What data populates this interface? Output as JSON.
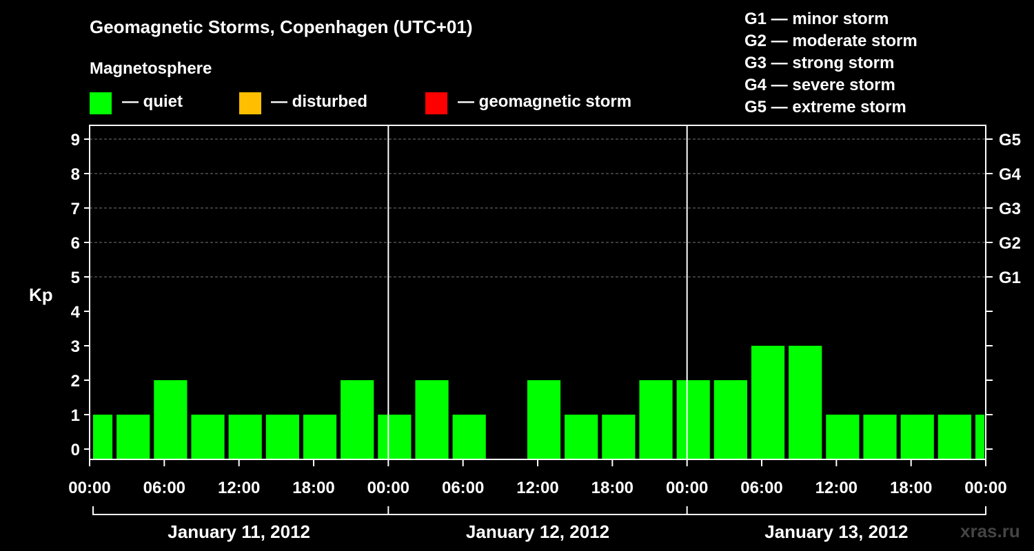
{
  "chart_data": {
    "type": "bar",
    "title": "Geomagnetic Storms, Copenhagen (UTC+01)",
    "ylabel": "Kp",
    "ylim": [
      0,
      9
    ],
    "y_ticks": [
      "0",
      "1",
      "2",
      "3",
      "4",
      "5",
      "6",
      "7",
      "8",
      "9"
    ],
    "right_ticks": [
      {
        "kp": 5,
        "label": "G1"
      },
      {
        "kp": 6,
        "label": "G2"
      },
      {
        "kp": 7,
        "label": "G3"
      },
      {
        "kp": 8,
        "label": "G4"
      },
      {
        "kp": 9,
        "label": "G5"
      }
    ],
    "x_ticks": [
      "00:00",
      "06:00",
      "12:00",
      "18:00",
      "00:00",
      "06:00",
      "12:00",
      "18:00",
      "00:00",
      "06:00",
      "12:00",
      "18:00",
      "00:00"
    ],
    "days": [
      "January 11, 2012",
      "January 12, 2012",
      "January 13, 2012"
    ],
    "interval_hours": 3,
    "bar_start_hour": -1,
    "values": [
      1,
      1,
      2,
      1,
      1,
      1,
      1,
      2,
      1,
      2,
      1,
      0,
      2,
      1,
      1,
      2,
      2,
      2,
      3,
      3,
      1,
      1,
      1,
      1,
      1
    ],
    "bar_color": "#00ff00",
    "grid": "dashed at Kp 5-9",
    "legend": {
      "title": "Magnetosphere",
      "items": [
        {
          "label": "— quiet",
          "color": "#00ff00"
        },
        {
          "label": "— disturbed",
          "color": "#ffbf00"
        },
        {
          "label": "— geomagnetic storm",
          "color": "#ff0000"
        }
      ]
    },
    "storm_levels": [
      "G1 — minor storm",
      "G2 — moderate storm",
      "G3 — strong storm",
      "G4 — severe storm",
      "G5 — extreme storm"
    ]
  },
  "watermark": "xras.ru"
}
